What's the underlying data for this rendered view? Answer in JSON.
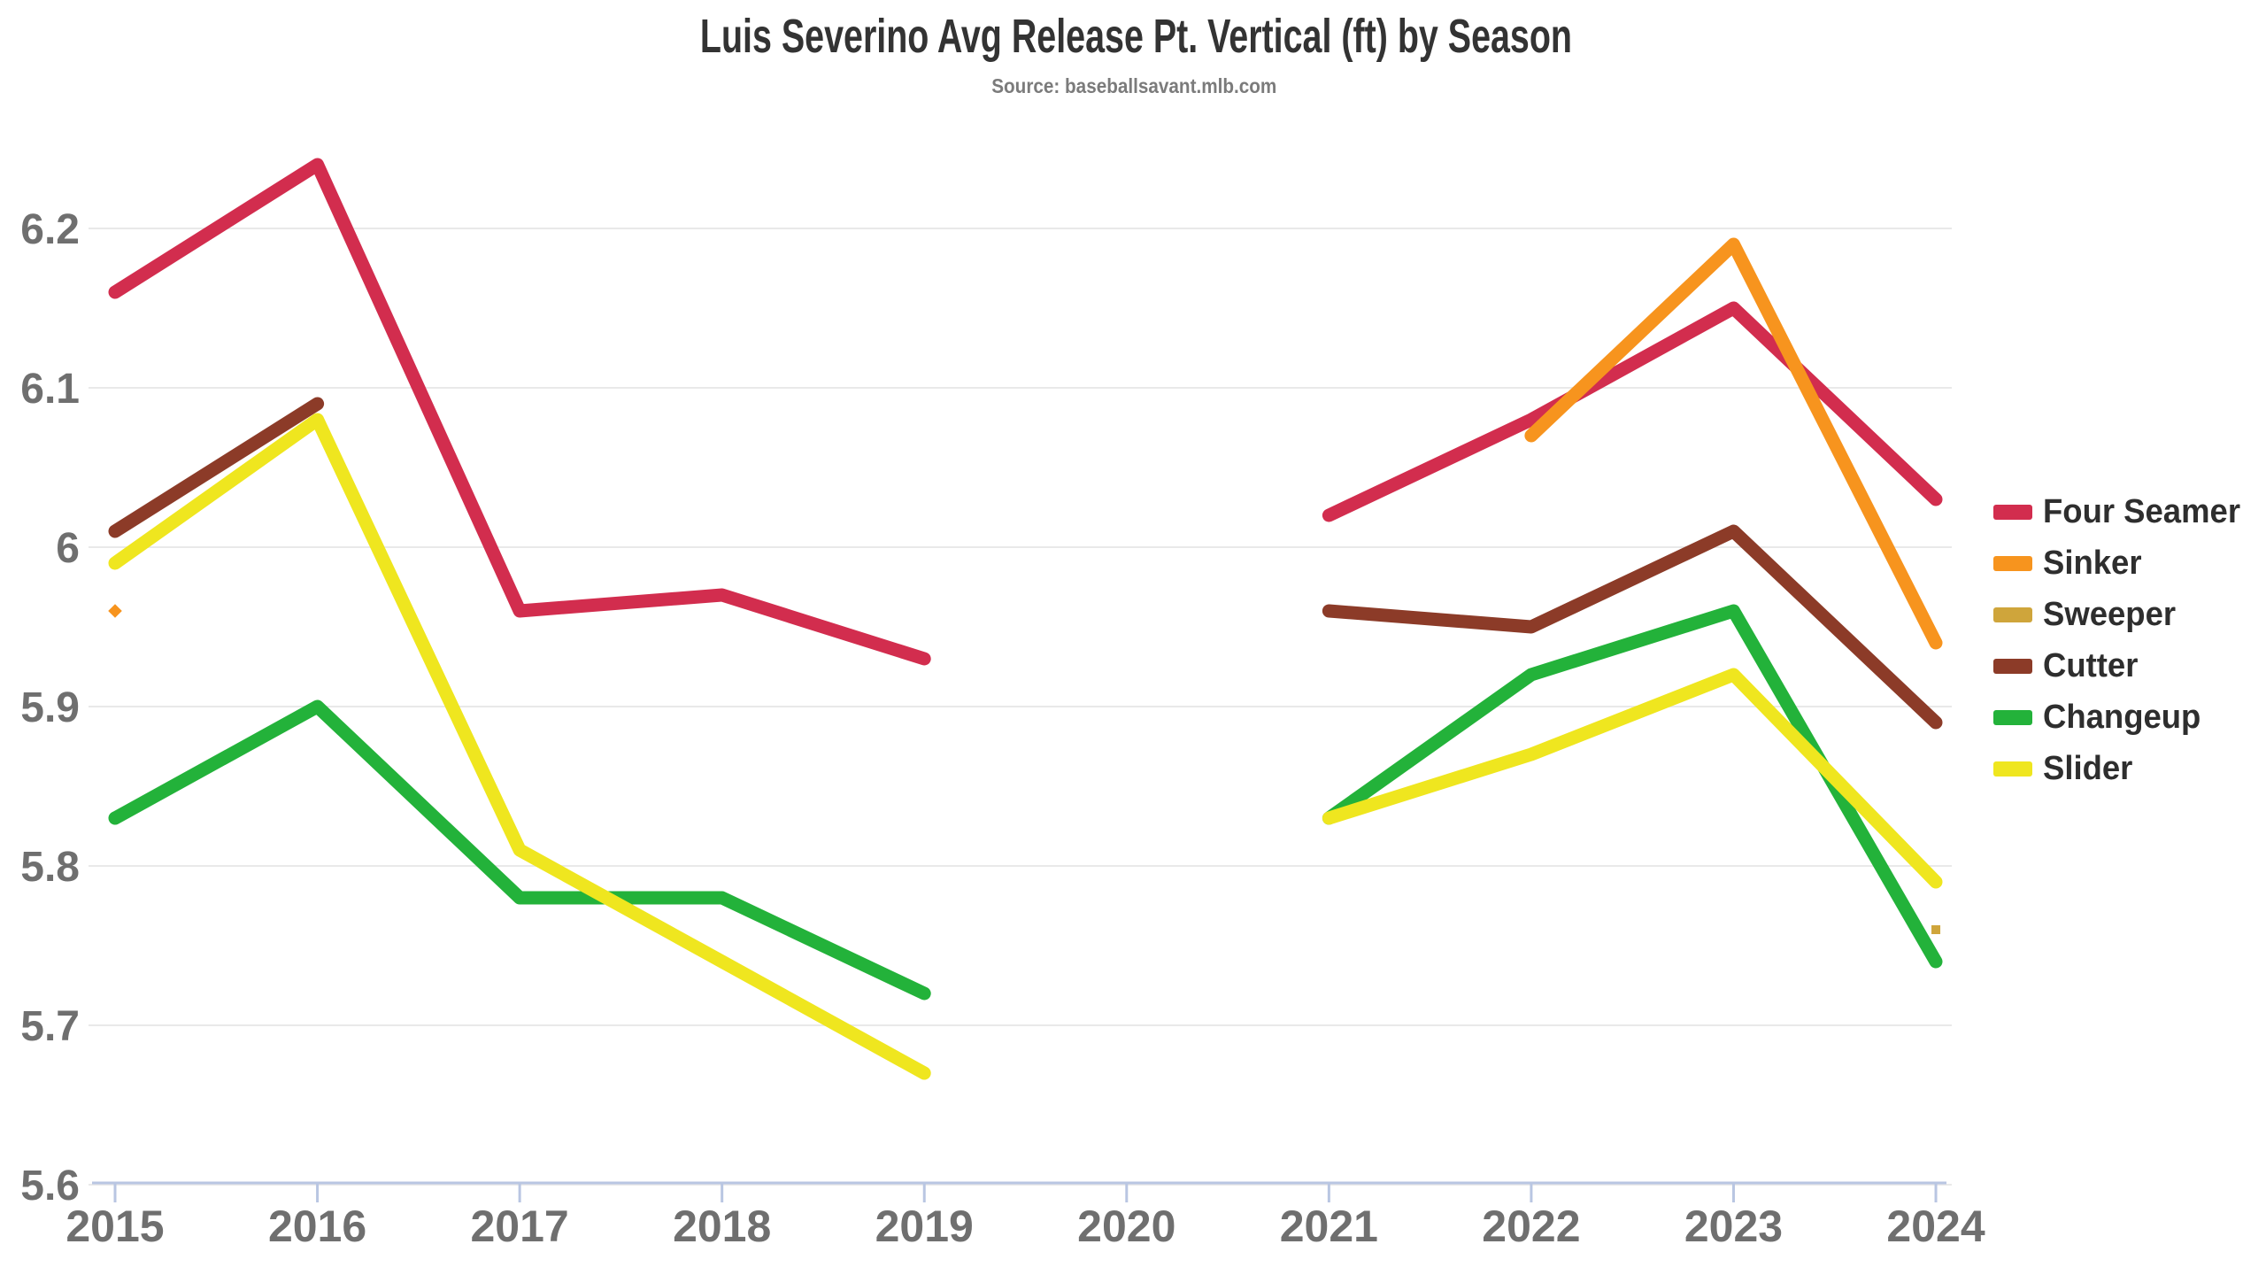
{
  "title": "Luis Severino Avg Release Pt. Vertical (ft) by Season",
  "subtitle": "Source: baseballsavant.mlb.com",
  "colors": {
    "background": "#ffffff",
    "title_text": "#333333",
    "subtitle_text": "#7b7b7b",
    "grid": "#e9e9e9",
    "axis": "#b9c6e2",
    "tick_label": "#6f6f6f",
    "legend_text": "#2e2e2e"
  },
  "chart_data": {
    "type": "line",
    "title": "Luis Severino Avg Release Pt. Vertical (ft) by Season",
    "subtitle": "Source: baseballsavant.mlb.com",
    "xlabel": "",
    "ylabel": "",
    "x_ticks": [
      2015,
      2016,
      2017,
      2018,
      2019,
      2020,
      2021,
      2022,
      2023,
      2024
    ],
    "y_ticks": [
      5.6,
      5.7,
      5.8,
      5.9,
      6.0,
      6.1,
      6.2
    ],
    "y_tick_labels": [
      "5.6",
      "5.7",
      "5.8",
      "5.9",
      "6",
      "6.1",
      "6.2"
    ],
    "xlim": [
      2015,
      2024
    ],
    "ylim": [
      5.6,
      6.27
    ],
    "grid": "horizontal",
    "legend_position": "right",
    "line_width": 15,
    "note_gap_year": 2020,
    "series": [
      {
        "name": "Four Seamer",
        "color": "#d22d4e",
        "marker": "square",
        "points": [
          [
            2015,
            6.16
          ],
          [
            2016,
            6.24
          ],
          [
            2017,
            5.96
          ],
          [
            2018,
            5.97
          ],
          [
            2019,
            5.93
          ],
          [
            2021,
            6.02
          ],
          [
            2022,
            6.08
          ],
          [
            2023,
            6.15
          ],
          [
            2024,
            6.03
          ]
        ]
      },
      {
        "name": "Sinker",
        "color": "#f7941e",
        "marker": "diamond",
        "points": [
          [
            2015,
            5.96
          ],
          [
            2022,
            6.07
          ],
          [
            2023,
            6.19
          ],
          [
            2024,
            5.94
          ]
        ]
      },
      {
        "name": "Sweeper",
        "color": "#cfa53b",
        "marker": "square",
        "points": [
          [
            2024,
            5.76
          ]
        ]
      },
      {
        "name": "Cutter",
        "color": "#8c3b28",
        "marker": "square",
        "points": [
          [
            2015,
            6.01
          ],
          [
            2016,
            6.09
          ],
          [
            2021,
            5.96
          ],
          [
            2022,
            5.95
          ],
          [
            2023,
            6.01
          ],
          [
            2024,
            5.89
          ]
        ]
      },
      {
        "name": "Changeup",
        "color": "#23b23a",
        "marker": "square",
        "points": [
          [
            2015,
            5.83
          ],
          [
            2016,
            5.9
          ],
          [
            2017,
            5.78
          ],
          [
            2018,
            5.78
          ],
          [
            2019,
            5.72
          ],
          [
            2021,
            5.83
          ],
          [
            2022,
            5.92
          ],
          [
            2023,
            5.96
          ],
          [
            2024,
            5.74
          ]
        ]
      },
      {
        "name": "Slider",
        "color": "#efe61f",
        "marker": "square",
        "points": [
          [
            2015,
            5.99
          ],
          [
            2016,
            6.08
          ],
          [
            2017,
            5.81
          ],
          [
            2018,
            5.74
          ],
          [
            2019,
            5.67
          ],
          [
            2021,
            5.83
          ],
          [
            2022,
            5.87
          ],
          [
            2023,
            5.92
          ],
          [
            2024,
            5.79
          ]
        ]
      }
    ]
  }
}
